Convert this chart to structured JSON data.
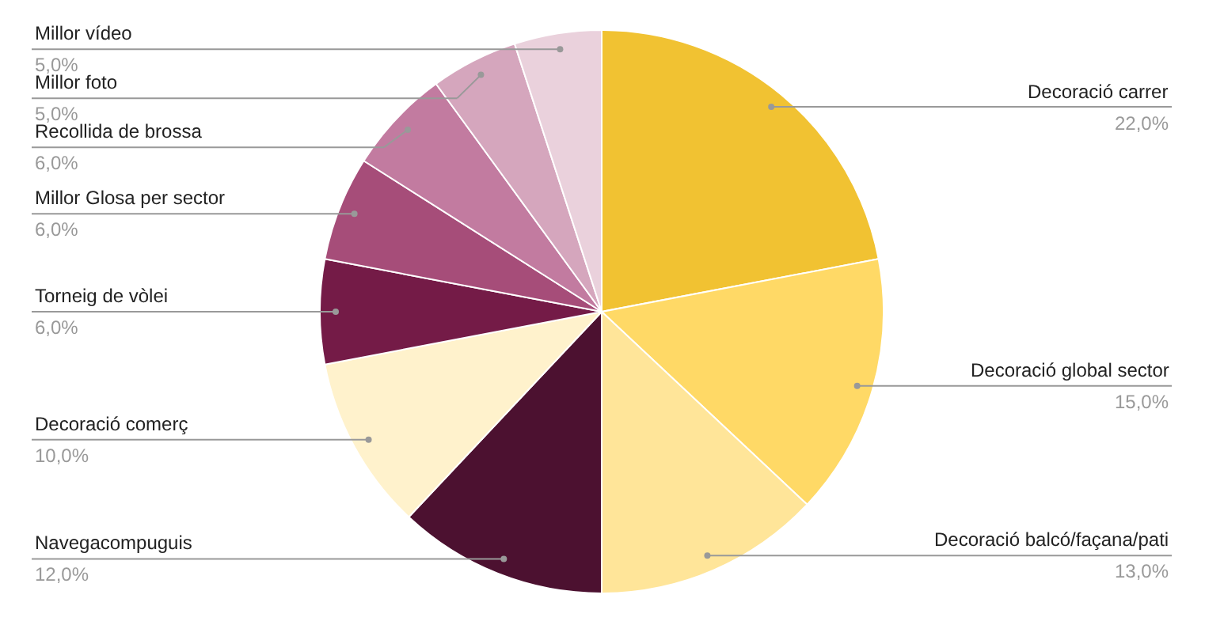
{
  "chart_data": {
    "type": "pie",
    "categories": [
      "Decoració carrer",
      "Decoració global sector",
      "Decoració balcó/façana/pati",
      "Navegacompuguis",
      "Decoració comerç",
      "Torneig de vòlei",
      "Millor Glosa per sector",
      "Recollida de brossa",
      "Millor foto",
      "Millor vídeo"
    ],
    "values": [
      22,
      15,
      13,
      12,
      10,
      6,
      6,
      6,
      5,
      5
    ],
    "value_labels": [
      "22,0%",
      "15,0%",
      "13,0%",
      "12,0%",
      "10,0%",
      "6,0%",
      "6,0%",
      "6,0%",
      "5,0%",
      "5,0%"
    ],
    "colors": [
      "#f1c232",
      "#ffd966",
      "#ffe599",
      "#4c1130",
      "#fff2cc",
      "#741b47",
      "#a64d79",
      "#c27ba0",
      "#d5a6bd",
      "#ead1dc"
    ]
  }
}
